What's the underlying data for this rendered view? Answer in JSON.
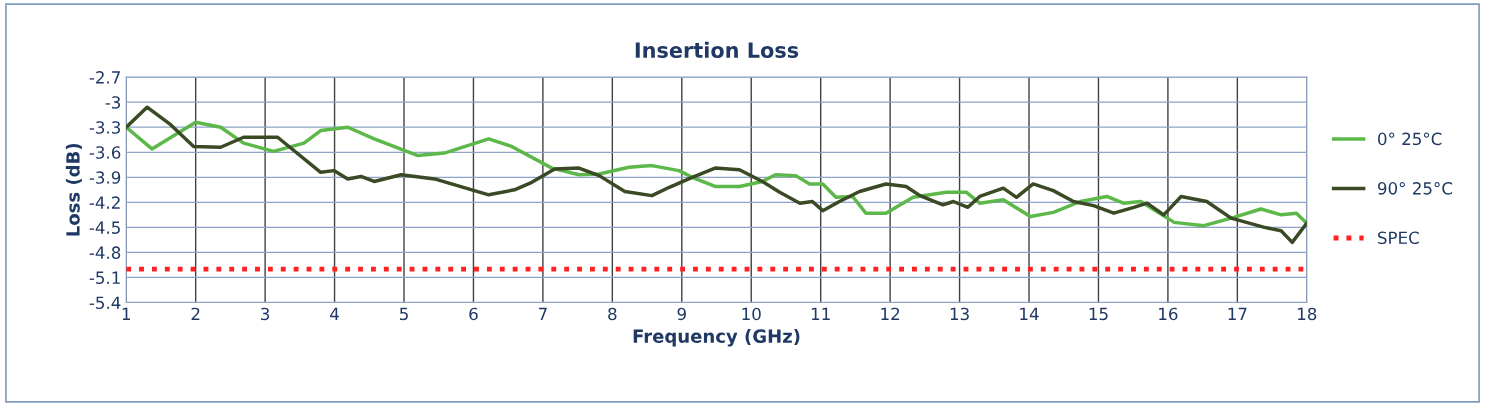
{
  "chart_data": {
    "type": "line",
    "title": "Insertion Loss",
    "xlabel": "Frequency (GHz)",
    "ylabel": "Loss (dB)",
    "xlim": [
      1,
      18
    ],
    "xticks": [
      1,
      2,
      3,
      4,
      5,
      6,
      7,
      8,
      9,
      10,
      11,
      12,
      13,
      14,
      15,
      16,
      17,
      18
    ],
    "ylim": [
      -5.4,
      -2.7
    ],
    "yticks": [
      -2.7,
      -3,
      -3.3,
      -3.6,
      -3.9,
      -4.2,
      -4.5,
      -4.8,
      -5.1,
      -5.4
    ],
    "grid": true,
    "legend": "right",
    "line_style": "solid",
    "marker": "none",
    "series": [
      {
        "name": "0° 25°C",
        "color": "#5cb848",
        "x": [
          1.0,
          1.37,
          2.0,
          2.36,
          2.69,
          3.12,
          3.56,
          3.8,
          4.19,
          4.57,
          5.2,
          5.58,
          6.22,
          6.55,
          7.13,
          7.52,
          7.81,
          8.24,
          8.57,
          8.96,
          9.15,
          9.48,
          9.83,
          10.16,
          10.35,
          10.64,
          10.84,
          11.03,
          11.22,
          11.46,
          11.65,
          11.94,
          12.33,
          12.81,
          13.1,
          13.29,
          13.63,
          14.02,
          14.35,
          14.74,
          15.12,
          15.36,
          15.61,
          16.09,
          16.52,
          16.95,
          17.34,
          17.63,
          17.85,
          18.0
        ],
        "values": [
          -3.3,
          -3.56,
          -3.24,
          -3.3,
          -3.49,
          -3.59,
          -3.49,
          -3.34,
          -3.3,
          -3.44,
          -3.64,
          -3.61,
          -3.44,
          -3.53,
          -3.79,
          -3.87,
          -3.86,
          -3.78,
          -3.76,
          -3.82,
          -3.9,
          -4.01,
          -4.01,
          -3.95,
          -3.87,
          -3.88,
          -3.98,
          -3.98,
          -4.14,
          -4.13,
          -4.33,
          -4.33,
          -4.14,
          -4.08,
          -4.08,
          -4.21,
          -4.17,
          -4.37,
          -4.32,
          -4.19,
          -4.13,
          -4.21,
          -4.19,
          -4.44,
          -4.48,
          -4.38,
          -4.28,
          -4.35,
          -4.33,
          -4.45
        ]
      },
      {
        "name": "90° 25°C",
        "color": "#3a4a25",
        "x": [
          1.0,
          1.3,
          1.64,
          1.97,
          2.36,
          2.69,
          3.18,
          3.8,
          3.99,
          4.19,
          4.38,
          4.57,
          4.96,
          5.44,
          6.22,
          6.59,
          6.84,
          7.17,
          7.52,
          7.81,
          8.18,
          8.57,
          8.82,
          9.15,
          9.48,
          9.83,
          10.16,
          10.41,
          10.7,
          10.88,
          11.03,
          11.27,
          11.56,
          11.94,
          12.23,
          12.43,
          12.76,
          12.91,
          13.12,
          13.29,
          13.63,
          13.82,
          14.06,
          14.35,
          14.64,
          14.93,
          15.22,
          15.51,
          15.7,
          15.94,
          16.19,
          16.56,
          16.91,
          17.39,
          17.63,
          17.79,
          18.0
        ],
        "values": [
          -3.3,
          -3.06,
          -3.27,
          -3.53,
          -3.54,
          -3.42,
          -3.42,
          -3.84,
          -3.82,
          -3.92,
          -3.89,
          -3.95,
          -3.87,
          -3.92,
          -4.11,
          -4.05,
          -3.96,
          -3.8,
          -3.79,
          -3.88,
          -4.07,
          -4.12,
          -4.02,
          -3.9,
          -3.79,
          -3.81,
          -3.95,
          -4.08,
          -4.21,
          -4.19,
          -4.3,
          -4.19,
          -4.07,
          -3.98,
          -4.01,
          -4.12,
          -4.23,
          -4.19,
          -4.26,
          -4.13,
          -4.03,
          -4.14,
          -3.98,
          -4.06,
          -4.19,
          -4.24,
          -4.33,
          -4.26,
          -4.21,
          -4.35,
          -4.13,
          -4.19,
          -4.39,
          -4.5,
          -4.54,
          -4.68,
          -4.45
        ]
      },
      {
        "name": "SPEC",
        "color": "#ff2020",
        "line_style": "dotted",
        "x": [
          1,
          18
        ],
        "values": [
          -5,
          -5
        ]
      }
    ]
  }
}
